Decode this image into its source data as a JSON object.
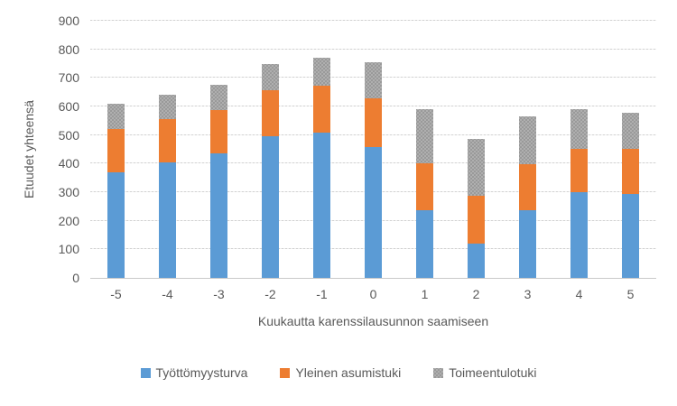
{
  "chart_data": {
    "type": "bar",
    "stacked": true,
    "title": "",
    "xlabel": "Kuukautta karenssilausunnon saamiseen",
    "ylabel": "Etuudet yhteensä",
    "ylim": [
      0,
      900
    ],
    "ytick_step": 100,
    "grid": true,
    "legend_position": "bottom",
    "categories": [
      "-5",
      "-4",
      "-3",
      "-2",
      "-1",
      "0",
      "1",
      "2",
      "3",
      "4",
      "5"
    ],
    "series": [
      {
        "name": "Työttömyysturva",
        "color": "#5B9BD5",
        "pattern": "solid",
        "values": [
          370,
          405,
          437,
          495,
          510,
          457,
          237,
          120,
          237,
          300,
          293
        ]
      },
      {
        "name": "Yleinen asumistuki",
        "color": "#ED7D31",
        "pattern": "solid",
        "values": [
          152,
          150,
          152,
          161,
          164,
          170,
          163,
          167,
          162,
          153,
          160
        ]
      },
      {
        "name": "Toimeentulotuki",
        "color": "#AFAFAF",
        "pattern": "dotted",
        "values": [
          88,
          85,
          87,
          91,
          96,
          127,
          190,
          198,
          167,
          137,
          125
        ]
      }
    ],
    "stacked_totals": [
      610,
      640,
      676,
      747,
      770,
      754,
      590,
      485,
      566,
      590,
      578
    ]
  },
  "colors": {
    "axis_text": "#595959",
    "gridline": "#d9d9d9",
    "background": "#ffffff"
  }
}
